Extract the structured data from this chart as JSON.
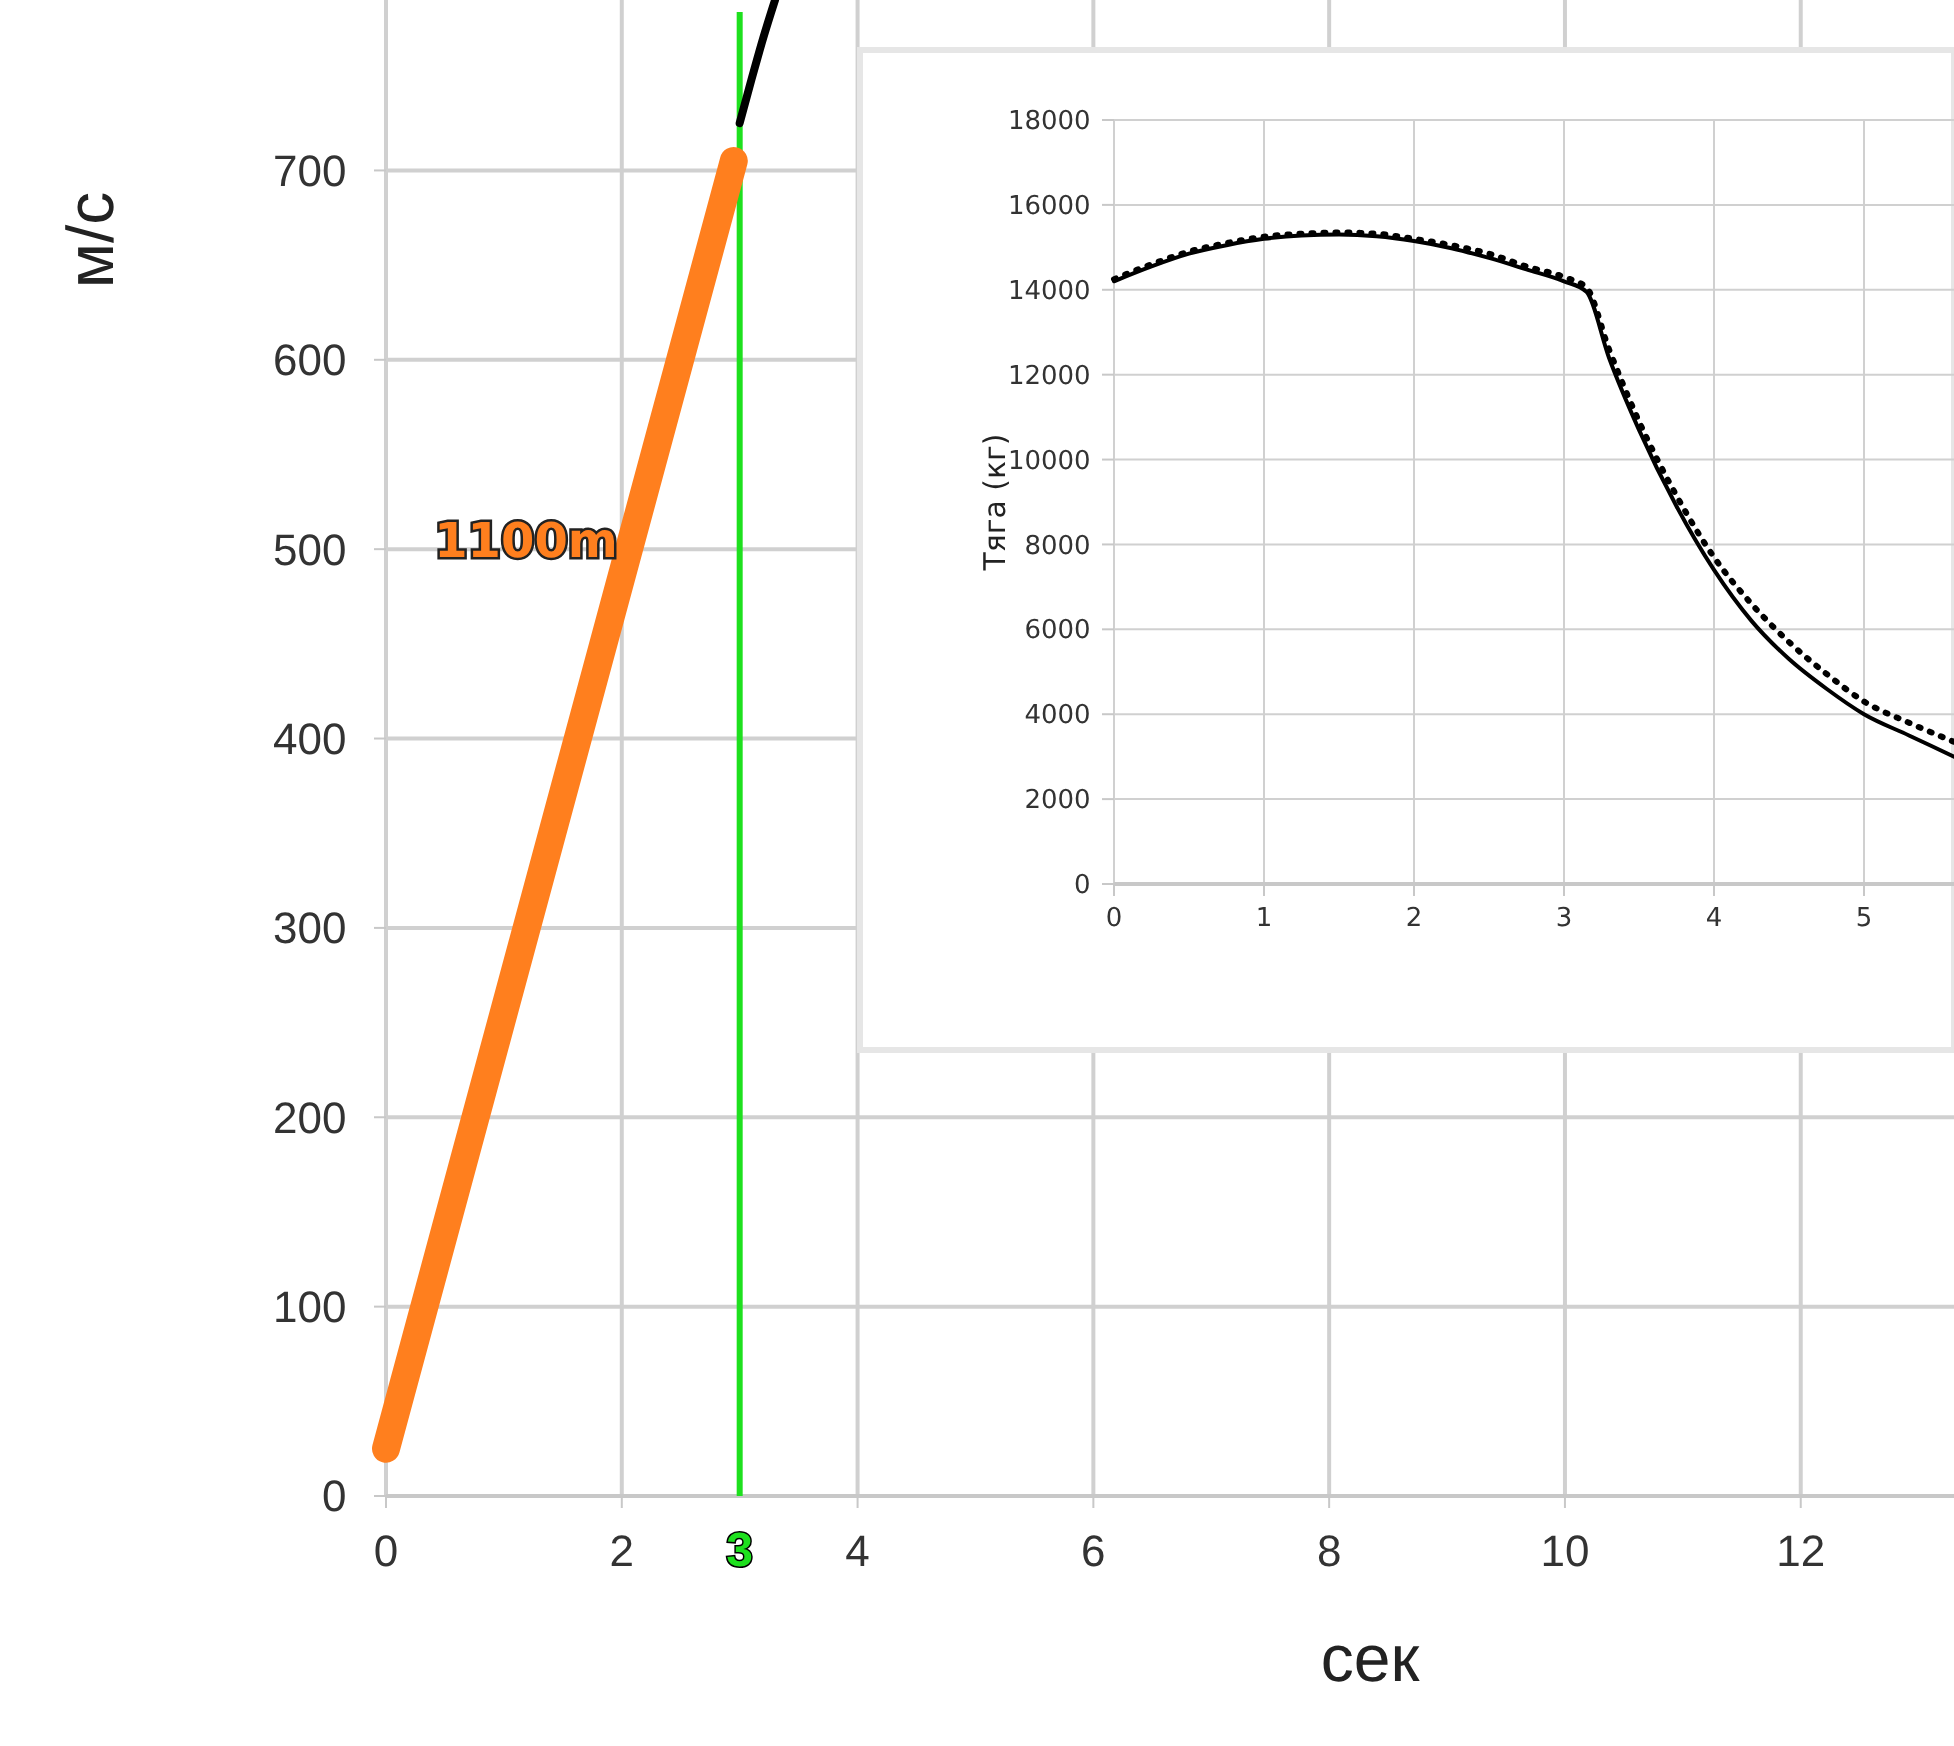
{
  "chart_data": [
    {
      "type": "line",
      "xlabel": "сек",
      "ylabel": "м/с",
      "xlim": [
        0,
        13.3
      ],
      "ylim": [
        0,
        790
      ],
      "xticks": [
        0,
        2,
        4,
        6,
        8,
        10,
        12
      ],
      "yticks": [
        0,
        100,
        200,
        300,
        400,
        500,
        600,
        700
      ],
      "grid": true,
      "series": [
        {
          "color": "#ff7f1e",
          "x": [
            0,
            2.95
          ],
          "values": [
            25,
            705
          ]
        },
        {
          "color": "#000000",
          "x": [
            3,
            3.1,
            3.2,
            3.3
          ],
          "values": [
            725,
            748,
            770,
            790
          ]
        }
      ],
      "ref_lines": [
        {
          "axis": "x",
          "value": 3,
          "label": "3",
          "color": "#1ee01e"
        }
      ],
      "annotations": [
        "1100m"
      ]
    },
    {
      "type": "line",
      "ylabel": "Тяга (кг)",
      "xlim": [
        0,
        5.6
      ],
      "ylim": [
        0,
        18000
      ],
      "xticks": [
        0,
        1,
        2,
        3,
        4,
        5
      ],
      "yticks": [
        0,
        2000,
        4000,
        6000,
        8000,
        10000,
        12000,
        14000,
        16000,
        18000
      ],
      "grid": true,
      "series": [
        {
          "color": "#000000",
          "line_style": "solid",
          "x": [
            0,
            0.25,
            0.5,
            0.75,
            1,
            1.25,
            1.5,
            1.75,
            2,
            2.25,
            2.5,
            2.75,
            3,
            3.15,
            3.3,
            3.5,
            3.75,
            4,
            4.25,
            4.5,
            4.75,
            5,
            5.3,
            5.6
          ],
          "values": [
            14200,
            14550,
            14850,
            15050,
            15200,
            15280,
            15300,
            15260,
            15150,
            14980,
            14750,
            14480,
            14200,
            13950,
            12400,
            10700,
            8900,
            7400,
            6200,
            5300,
            4600,
            4000,
            3500,
            3000
          ]
        },
        {
          "color": "#000000",
          "line_style": "dotted",
          "x": [
            0,
            0.25,
            0.5,
            0.75,
            1,
            1.25,
            1.5,
            1.75,
            2,
            2.25,
            2.5,
            2.75,
            3,
            3.15,
            3.3,
            3.5,
            3.75,
            4,
            4.25,
            4.5,
            4.75,
            5,
            5.3,
            5.6
          ],
          "values": [
            14250,
            14600,
            14900,
            15100,
            15250,
            15320,
            15350,
            15320,
            15200,
            15050,
            14850,
            14550,
            14300,
            14050,
            12600,
            10900,
            9150,
            7700,
            6600,
            5700,
            4950,
            4300,
            3800,
            3350
          ]
        }
      ]
    }
  ]
}
